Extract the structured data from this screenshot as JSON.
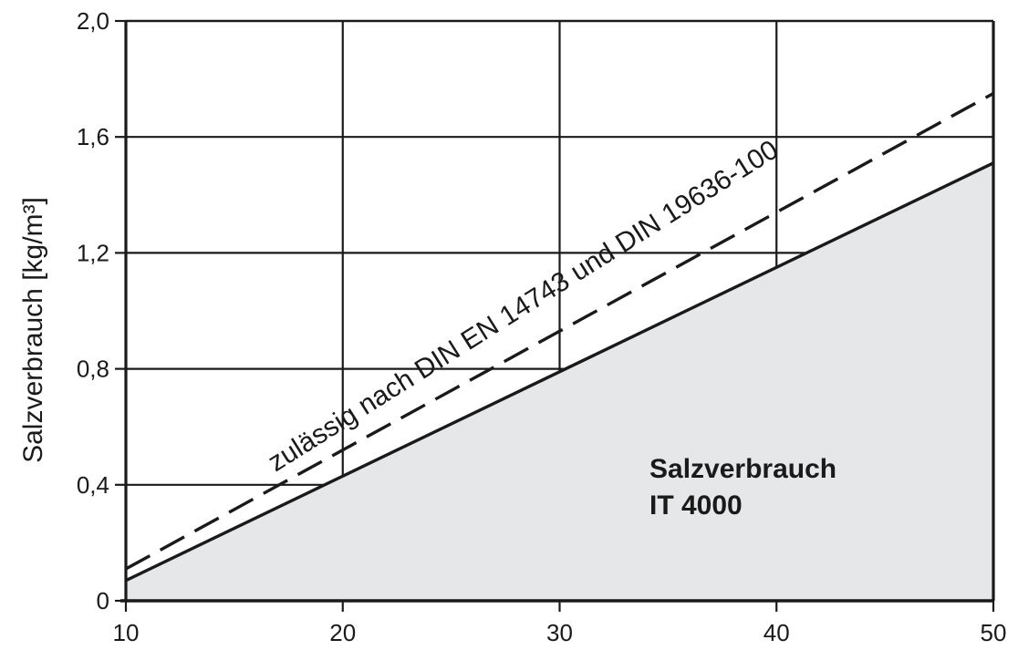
{
  "chart_data": {
    "type": "area",
    "ylabel": "Salzverbrauch [kg/m³]",
    "xlabel": "",
    "xlim": [
      10,
      50
    ],
    "ylim": [
      0,
      2.0
    ],
    "x_ticks": [
      "10",
      "20",
      "30",
      "40",
      "50"
    ],
    "y_ticks": [
      "0",
      "0,4",
      "0,8",
      "1,2",
      "1,6",
      "2,0"
    ],
    "grid": true,
    "series": [
      {
        "name": "zulässig nach DIN EN 14743 und DIN 19636-100",
        "style": "dashed",
        "x": [
          10,
          50
        ],
        "y": [
          0.11,
          1.75
        ]
      },
      {
        "name": "Salzverbrauch IT 4000",
        "style": "solid-filled",
        "x": [
          10,
          50
        ],
        "y": [
          0.07,
          1.51
        ]
      }
    ],
    "annotations": {
      "dashed_label": "zulässig nach DIN EN 14743 und DIN 19636-100",
      "area_label_line1": "Salzverbrauch",
      "area_label_line2": "IT 4000"
    },
    "colors": {
      "fill": "#e6e7e9",
      "line": "#1a1a1a"
    }
  }
}
